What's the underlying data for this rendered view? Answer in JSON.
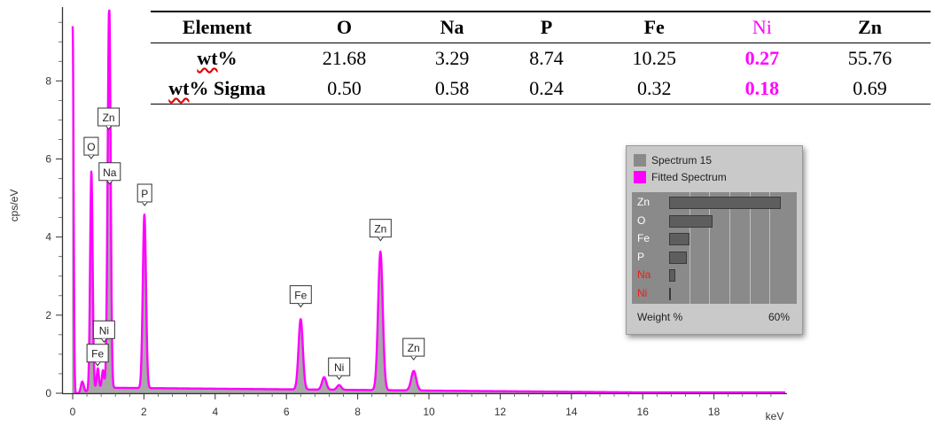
{
  "chart_data": {
    "type": "line",
    "xlabel": "keV",
    "ylabel": "cps/eV",
    "xlim": [
      0,
      20
    ],
    "ylim": [
      0,
      9.8
    ],
    "x_ticks": [
      "0",
      "2",
      "4",
      "6",
      "8",
      "10",
      "12",
      "14",
      "16",
      "18"
    ],
    "y_ticks": [
      "0",
      "2",
      "4",
      "6",
      "8"
    ],
    "series": [
      {
        "name": "Spectrum 15",
        "color": "#9a9a9a",
        "style": "filled"
      },
      {
        "name": "Fitted Spectrum",
        "color": "#ff00ff",
        "style": "line"
      }
    ],
    "peaks": [
      {
        "x": 0.0,
        "y": 9.4,
        "width": 0.025
      },
      {
        "x": 0.27,
        "y": 0.3,
        "width": 0.04
      },
      {
        "x": 0.525,
        "y": 5.6,
        "width": 0.035
      },
      {
        "x": 0.705,
        "y": 0.5,
        "width": 0.03
      },
      {
        "x": 0.85,
        "y": 0.45,
        "width": 0.03
      },
      {
        "x": 1.012,
        "y": 6.3,
        "width": 0.04
      },
      {
        "x": 1.041,
        "y": 4.3,
        "width": 0.035
      },
      {
        "x": 2.013,
        "y": 4.45,
        "width": 0.045
      },
      {
        "x": 6.4,
        "y": 1.8,
        "width": 0.06
      },
      {
        "x": 7.058,
        "y": 0.32,
        "width": 0.06
      },
      {
        "x": 7.478,
        "y": 0.12,
        "width": 0.06
      },
      {
        "x": 8.638,
        "y": 3.55,
        "width": 0.065
      },
      {
        "x": 9.572,
        "y": 0.5,
        "width": 0.07
      }
    ],
    "background": {
      "level": 0.12,
      "start": 0.3,
      "decay_to": 16
    },
    "peak_labels": [
      {
        "text": "O",
        "x": 0.52,
        "y": 6.1
      },
      {
        "text": "Zn",
        "x": 1.01,
        "y": 6.85
      },
      {
        "text": "Na",
        "x": 1.04,
        "y": 5.45
      },
      {
        "text": "P",
        "x": 2.02,
        "y": 4.9
      },
      {
        "text": "Fe",
        "x": 6.4,
        "y": 2.3
      },
      {
        "text": "Ni",
        "x": 7.48,
        "y": 0.45
      },
      {
        "text": "Zn",
        "x": 8.64,
        "y": 4.0
      },
      {
        "text": "Zn",
        "x": 9.57,
        "y": 0.95
      },
      {
        "text": "Ni",
        "x": 0.88,
        "y": 1.4
      },
      {
        "text": "Fe",
        "x": 0.7,
        "y": 0.8
      }
    ]
  },
  "table": {
    "header_label": "Element",
    "elements": [
      "O",
      "Na",
      "P",
      "Fe",
      "Ni",
      "Zn"
    ],
    "highlight_element": "Ni",
    "highlight_color": "#ff00ff",
    "rows": [
      {
        "label_main": "wt",
        "label_rest": "%",
        "values": [
          "21.68",
          "3.29",
          "8.74",
          "10.25",
          "0.27",
          "55.76"
        ]
      },
      {
        "label_main": "wt",
        "label_rest": "% Sigma",
        "values": [
          "0.50",
          "0.58",
          "0.24",
          "0.32",
          "0.18",
          "0.69"
        ]
      }
    ]
  },
  "inset": {
    "legend": [
      {
        "label": "Spectrum 15",
        "color": "#8a8a8a"
      },
      {
        "label": "Fitted Spectrum",
        "color": "#ff00ff"
      }
    ],
    "xmax_percent": 60,
    "bars": [
      {
        "element": "Zn",
        "value": 55.76,
        "color": "#ffffff"
      },
      {
        "element": "O",
        "value": 21.68,
        "color": "#ffffff"
      },
      {
        "element": "Fe",
        "value": 10.25,
        "color": "#ffffff"
      },
      {
        "element": "P",
        "value": 8.74,
        "color": "#ffffff"
      },
      {
        "element": "Na",
        "value": 3.29,
        "color": "#e8201a"
      },
      {
        "element": "Ni",
        "value": 0.27,
        "color": "#e8201a"
      }
    ],
    "footer_left": "Weight %",
    "footer_right": "60%"
  }
}
